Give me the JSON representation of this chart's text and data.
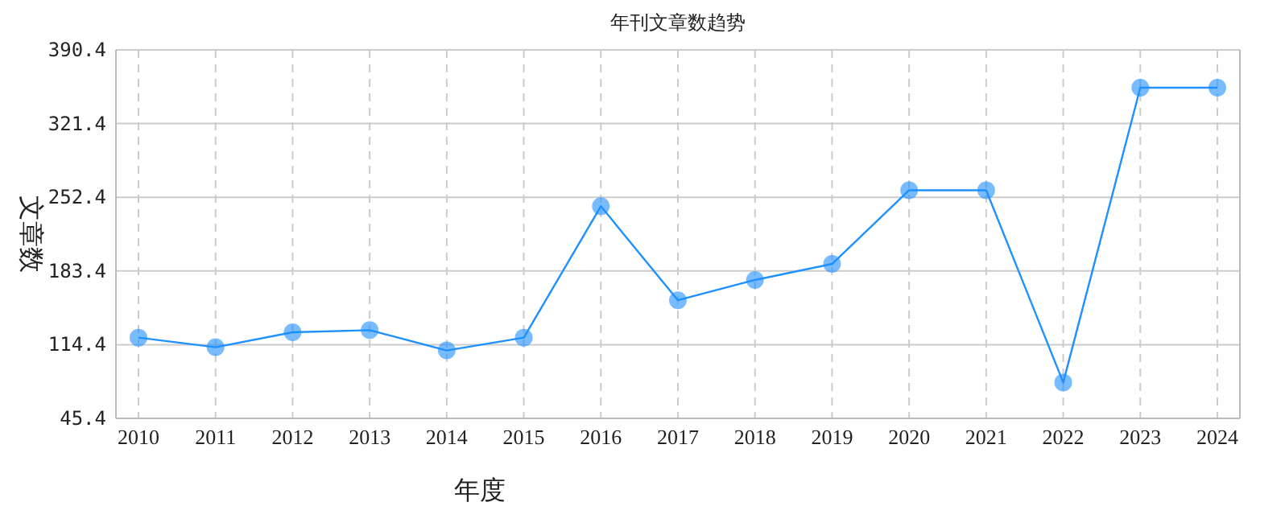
{
  "chart_data": {
    "type": "line",
    "title": "年刊文章数趋势",
    "xlabel": "年度",
    "ylabel": "文章数",
    "categories": [
      "2010",
      "2011",
      "2012",
      "2013",
      "2014",
      "2015",
      "2016",
      "2017",
      "2018",
      "2019",
      "2020",
      "2021",
      "2022",
      "2023",
      "2024"
    ],
    "series": [
      {
        "color": "#1e90ff",
        "values": [
          121,
          112,
          126,
          128,
          109,
          121,
          244,
          156,
          175,
          190,
          259,
          259,
          79,
          355,
          355
        ]
      }
    ],
    "ylim": [
      45.4,
      390.4
    ],
    "yticks": [
      45.4,
      114.4,
      183.4,
      252.4,
      321.4,
      390.4
    ],
    "grid": true,
    "marker": "circle",
    "line_style": "solid"
  }
}
